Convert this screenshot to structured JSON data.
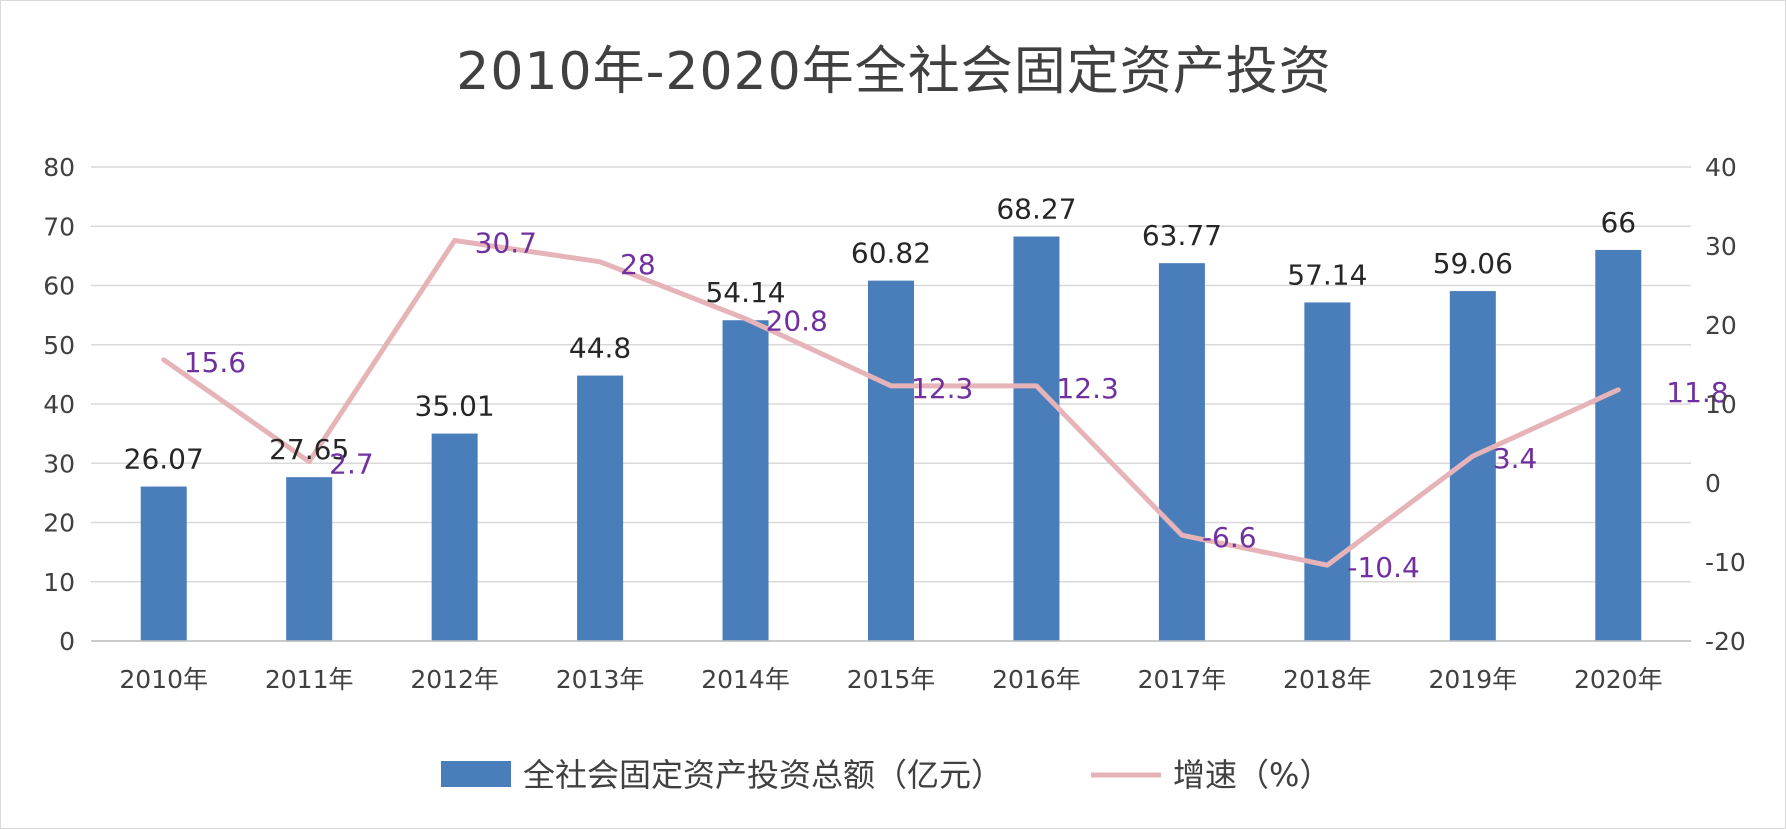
{
  "chart_data": {
    "type": "bar",
    "title": "2010年-2020年全社会固定资产投资",
    "categories": [
      "2010年",
      "2011年",
      "2012年",
      "2013年",
      "2014年",
      "2015年",
      "2016年",
      "2017年",
      "2018年",
      "2019年",
      "2020年"
    ],
    "series": [
      {
        "name": "全社会固定资产投资总额（亿元）",
        "type": "bar",
        "axis": "left",
        "color": "#4a7ebb",
        "values": [
          26.07,
          27.65,
          35.01,
          44.8,
          54.14,
          60.82,
          68.27,
          63.77,
          57.14,
          59.06,
          66
        ]
      },
      {
        "name": "增速（%）",
        "type": "line",
        "axis": "right",
        "color": "#e6b3b8",
        "label_color": "#7030a0",
        "values": [
          15.6,
          2.7,
          30.7,
          28,
          20.8,
          12.3,
          12.3,
          -6.6,
          -10.4,
          3.4,
          11.8
        ]
      }
    ],
    "y_left": {
      "min": 0,
      "max": 80,
      "ticks": [
        0,
        10,
        20,
        30,
        40,
        50,
        60,
        70,
        80
      ]
    },
    "y_right": {
      "min": -20,
      "max": 40,
      "ticks": [
        -20,
        -10,
        0,
        10,
        20,
        30,
        40
      ]
    },
    "grid": true,
    "legend": "bottom"
  }
}
